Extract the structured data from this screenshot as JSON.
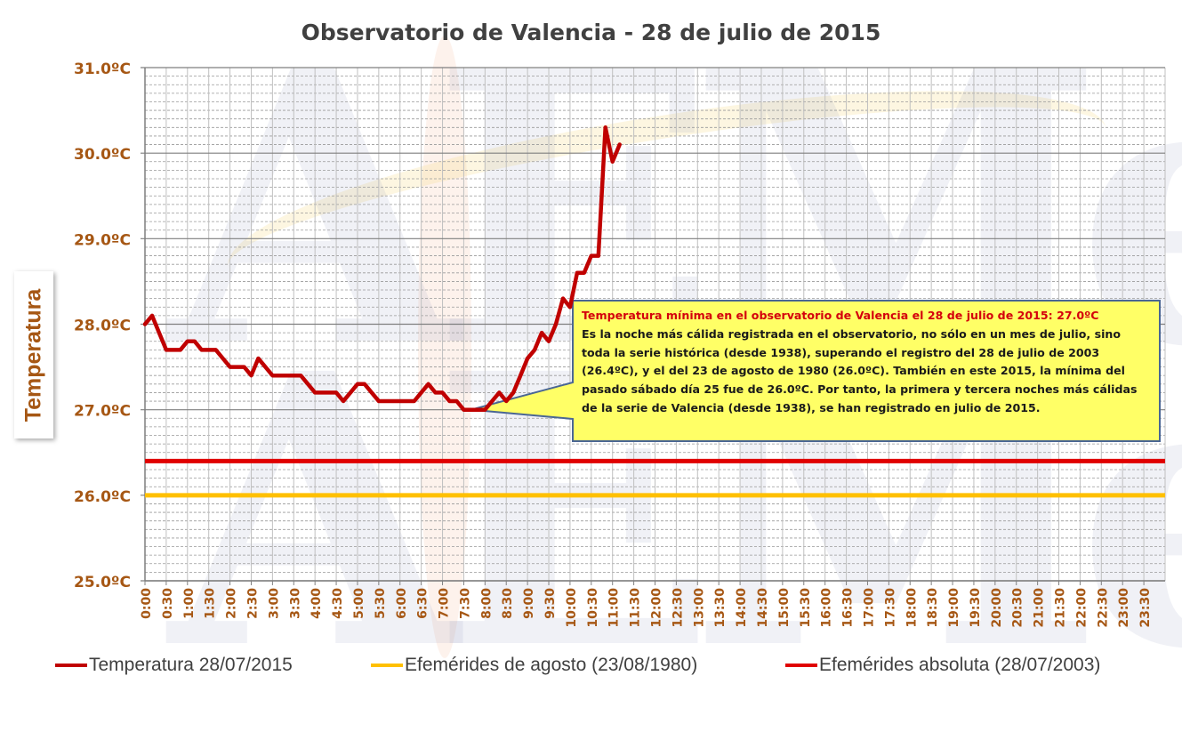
{
  "chart_data": {
    "type": "line",
    "title": "Observatorio de Valencia - 28 de julio de 2015",
    "ylabel": "Temperatura",
    "xlabel": "",
    "ylim": [
      25.0,
      31.0
    ],
    "y_ticks": [
      25.0,
      26.0,
      27.0,
      28.0,
      29.0,
      30.0,
      31.0
    ],
    "y_tick_labels": [
      "25.0ºC",
      "26.0ºC",
      "27.0ºC",
      "28.0ºC",
      "29.0ºC",
      "30.0ºC",
      "31.0ºC"
    ],
    "x_tick_labels": [
      "0:00",
      "0:30",
      "1:00",
      "1:30",
      "2:00",
      "2:30",
      "3:00",
      "3:30",
      "4:00",
      "4:30",
      "5:00",
      "5:30",
      "6:00",
      "6:30",
      "7:00",
      "7:30",
      "8:00",
      "8:30",
      "9:00",
      "9:30",
      "10:00",
      "10:30",
      "11:00",
      "11:30",
      "12:00",
      "12:30",
      "13:00",
      "13:30",
      "14:00",
      "14:30",
      "15:00",
      "15:30",
      "16:00",
      "16:30",
      "17:00",
      "17:30",
      "18:00",
      "18:30",
      "19:00",
      "19:30",
      "20:00",
      "20:30",
      "21:00",
      "21:30",
      "22:00",
      "22:30",
      "23:00",
      "23:30"
    ],
    "grid": true,
    "legend_position": "bottom",
    "series": [
      {
        "name": "Temperatura 28/07/2015",
        "color": "#c00000",
        "x": [
          "0:00",
          "0:10",
          "0:20",
          "0:30",
          "0:40",
          "0:50",
          "1:00",
          "1:10",
          "1:20",
          "1:30",
          "1:40",
          "1:50",
          "2:00",
          "2:10",
          "2:20",
          "2:30",
          "2:40",
          "2:50",
          "3:00",
          "3:10",
          "3:20",
          "3:30",
          "3:40",
          "3:50",
          "4:00",
          "4:10",
          "4:20",
          "4:30",
          "4:40",
          "4:50",
          "5:00",
          "5:10",
          "5:20",
          "5:30",
          "5:40",
          "5:50",
          "6:00",
          "6:10",
          "6:20",
          "6:30",
          "6:40",
          "6:50",
          "7:00",
          "7:10",
          "7:20",
          "7:30",
          "7:40",
          "7:50",
          "8:00",
          "8:10",
          "8:20",
          "8:30",
          "8:40",
          "8:50",
          "9:00",
          "9:10",
          "9:20",
          "9:30",
          "9:40",
          "9:50",
          "10:00",
          "10:10",
          "10:20",
          "10:30",
          "10:40",
          "10:50",
          "11:00",
          "11:10"
        ],
        "values": [
          28.0,
          28.1,
          27.9,
          27.7,
          27.7,
          27.7,
          27.8,
          27.8,
          27.7,
          27.7,
          27.7,
          27.6,
          27.5,
          27.5,
          27.5,
          27.4,
          27.6,
          27.5,
          27.4,
          27.4,
          27.4,
          27.4,
          27.4,
          27.3,
          27.2,
          27.2,
          27.2,
          27.2,
          27.1,
          27.2,
          27.3,
          27.3,
          27.2,
          27.1,
          27.1,
          27.1,
          27.1,
          27.1,
          27.1,
          27.2,
          27.3,
          27.2,
          27.2,
          27.1,
          27.1,
          27.0,
          27.0,
          27.0,
          27.0,
          27.1,
          27.2,
          27.1,
          27.2,
          27.4,
          27.6,
          27.7,
          27.9,
          27.8,
          28.0,
          28.3,
          28.2,
          28.6,
          28.6,
          28.8,
          28.8,
          30.3,
          29.9,
          30.1
        ]
      },
      {
        "name": "Efemérides de agosto (23/08/1980)",
        "color": "#ffc000",
        "constant": 26.0
      },
      {
        "name": "Efemérides absoluta (28/07/2003)",
        "color": "#e00000",
        "constant": 26.4
      }
    ],
    "annotations": [
      {
        "title": "Temperatura mínima en el observatorio de Valencia el 28 de julio de 2015: 27.0ºC",
        "text": "Es la noche más cálida registrada en el observatorio, no sólo en un mes de julio, sino toda la serie histórica (desde 1938), superando el registro del 28 de julio de 2003 (26.4ºC), y el del 23 de agosto de 1980 (26.0ºC). También en este 2015, la mínima del pasado sábado día 25 fue de 26.0ºC. Por tanto, la primera y tercera noches más cálidas de la serie de Valencia (desde 1938), se han registrado en julio de 2015.",
        "points_to": {
          "x": "7:40",
          "y": 27.0
        },
        "fill": "#ffff66",
        "border": "#4a6694"
      }
    ]
  },
  "watermark": "AEMet"
}
